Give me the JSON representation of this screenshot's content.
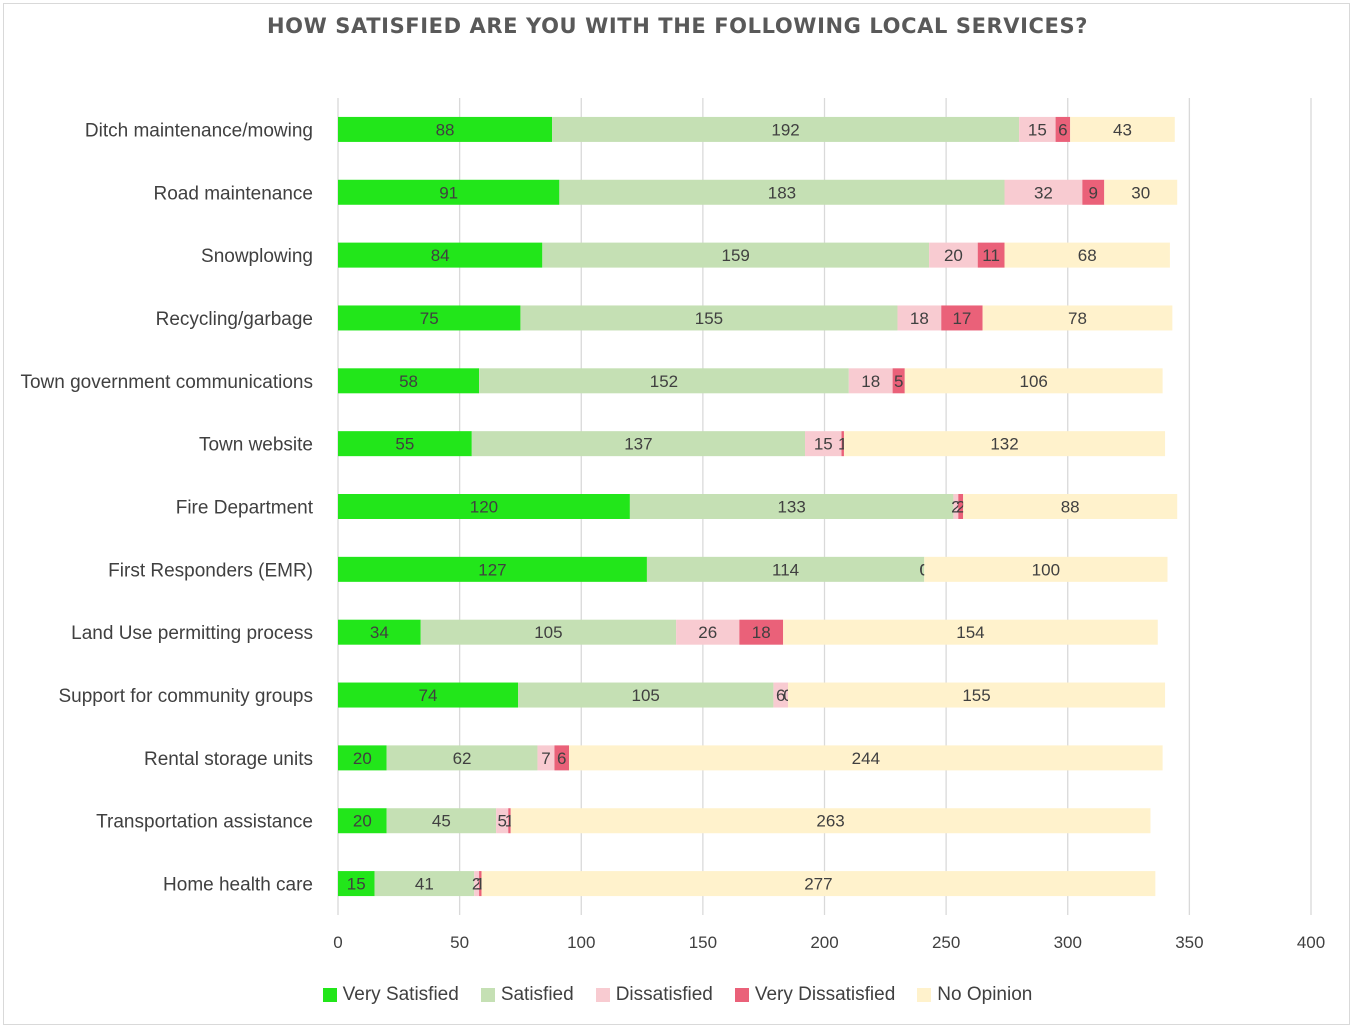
{
  "chart_data": {
    "type": "bar",
    "orientation": "horizontal",
    "stacked": true,
    "title": "HOW SATISFIED ARE YOU WITH THE FOLLOWING LOCAL SERVICES?",
    "xlim": [
      0,
      400
    ],
    "x_ticks": [
      "0",
      "50",
      "100",
      "150",
      "200",
      "250",
      "300",
      "350",
      "400"
    ],
    "grid": "vertical",
    "legend_position": "bottom",
    "categories": [
      "Ditch maintenance/mowing",
      "Road maintenance",
      "Snowplowing",
      "Recycling/garbage",
      "Town government communications",
      "Town website",
      "Fire Department",
      "First Responders (EMR)",
      "Land Use permitting process",
      "Support for community groups",
      "Rental storage units",
      "Transportation assistance",
      "Home health care"
    ],
    "series": [
      {
        "name": "Very Satisfied",
        "color": "#22e61a",
        "values": [
          88,
          91,
          84,
          75,
          58,
          55,
          120,
          127,
          34,
          74,
          20,
          20,
          15
        ]
      },
      {
        "name": "Satisfied",
        "color": "#c5e0b4",
        "values": [
          192,
          183,
          159,
          155,
          152,
          137,
          133,
          114,
          105,
          105,
          62,
          45,
          41
        ]
      },
      {
        "name": "Dissatisfied",
        "color": "#f8cbd1",
        "values": [
          15,
          32,
          20,
          18,
          18,
          15,
          2,
          0,
          26,
          6,
          7,
          5,
          2
        ]
      },
      {
        "name": "Very Dissatisfied",
        "color": "#ea6179",
        "values": [
          6,
          9,
          11,
          17,
          5,
          1,
          2,
          0,
          18,
          0,
          6,
          1,
          1
        ]
      },
      {
        "name": "No Opinion",
        "color": "#fff2cc",
        "values": [
          43,
          30,
          68,
          78,
          106,
          132,
          88,
          100,
          154,
          155,
          244,
          263,
          277
        ]
      }
    ]
  }
}
